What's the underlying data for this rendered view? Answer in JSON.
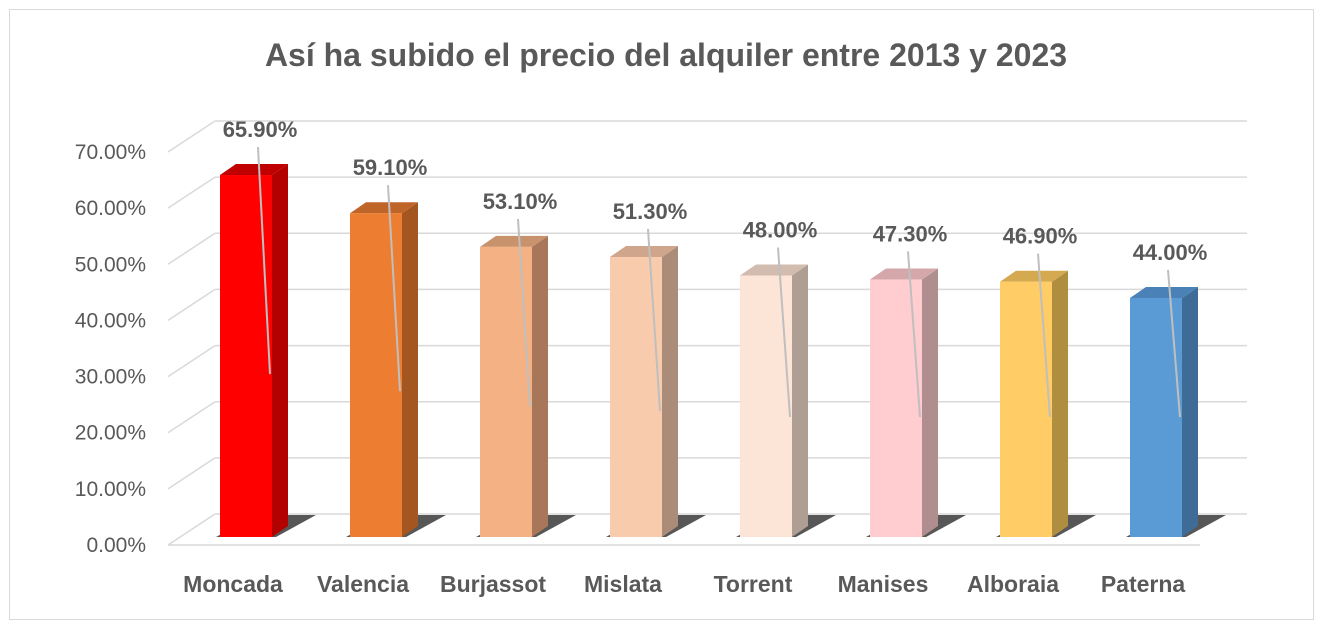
{
  "chart_data": {
    "type": "bar",
    "title": "Así ha subido el precio del alquiler entre 2013 y 2023",
    "categories": [
      "Moncada",
      "Valencia",
      "Burjassot",
      "Mislata",
      "Torrent",
      "Manises",
      "Alboraia",
      "Paterna"
    ],
    "values": [
      65.9,
      59.1,
      53.1,
      51.3,
      48.0,
      47.3,
      46.9,
      44.0
    ],
    "data_labels": [
      "65.90%",
      "59.10%",
      "53.10%",
      "51.30%",
      "48.00%",
      "47.30%",
      "46.90%",
      "44.00%"
    ],
    "y_ticks": [
      {
        "value": 0,
        "label": "0.00%"
      },
      {
        "value": 10,
        "label": "10.00%"
      },
      {
        "value": 20,
        "label": "20.00%"
      },
      {
        "value": 30,
        "label": "30.00%"
      },
      {
        "value": 40,
        "label": "40.00%"
      },
      {
        "value": 50,
        "label": "50.00%"
      },
      {
        "value": 60,
        "label": "60.00%"
      },
      {
        "value": 70,
        "label": "70.00%"
      }
    ],
    "ylim": [
      0,
      70
    ],
    "xlabel": "",
    "ylabel": "",
    "grid": true,
    "style": "3d-column",
    "colors": {
      "front": [
        "#ff0000",
        "#ed7d31",
        "#f4b183",
        "#f8cbad",
        "#fce4d6",
        "#ffccd0",
        "#ffcc66",
        "#5b9bd5"
      ],
      "side": [
        "#b30000",
        "#a3561f",
        "#a8775a",
        "#ab8c78",
        "#ae9e94",
        "#b08e90",
        "#b08e3f",
        "#3e6c96"
      ],
      "top": [
        "#c00000",
        "#c0652a",
        "#c8926c",
        "#cfa58c",
        "#d2bcb0",
        "#d4a8ab",
        "#d4a94f",
        "#4a82b8"
      ],
      "grid": "#d9d9d9",
      "leader": "#bfbfbf",
      "text": "#595959"
    }
  }
}
